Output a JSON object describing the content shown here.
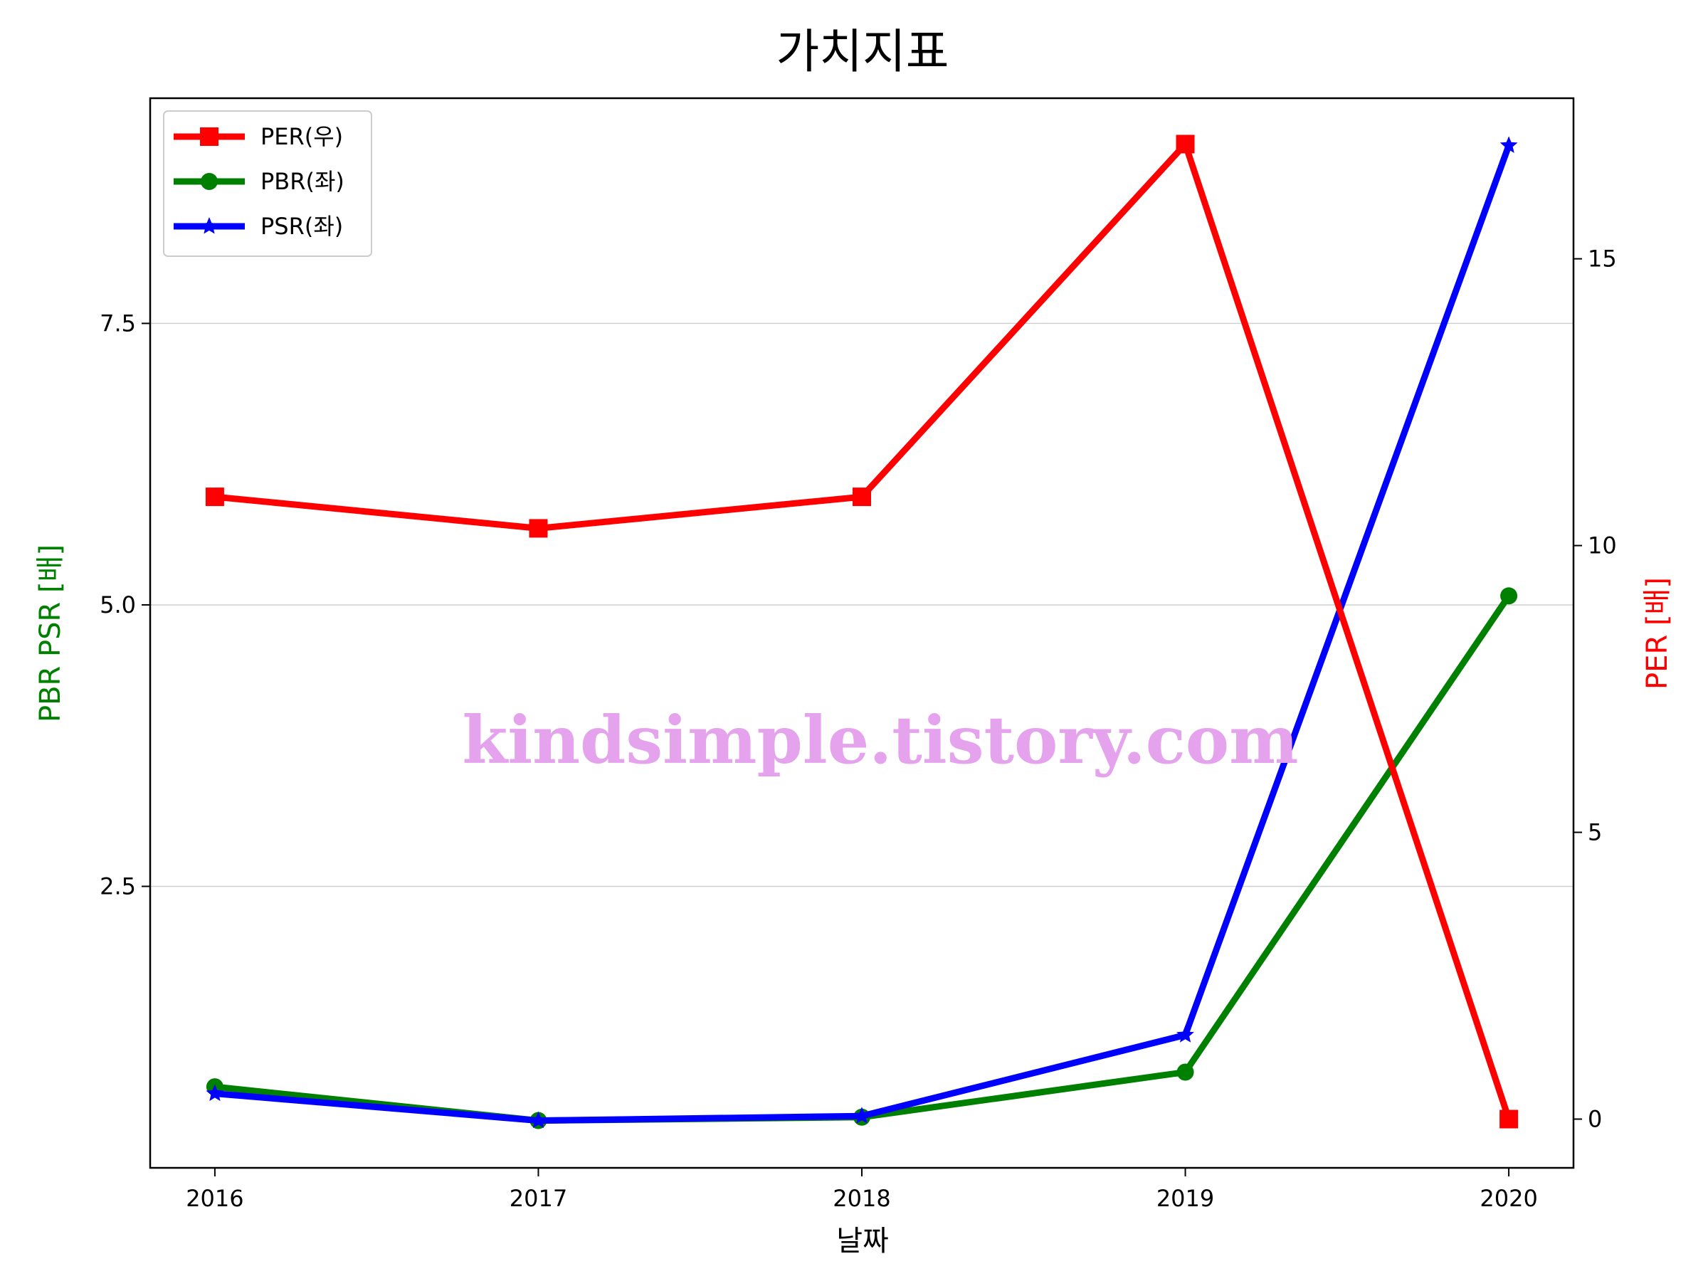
{
  "chart_data": {
    "type": "line",
    "title": "가치지표",
    "xlabel": "날짜",
    "ylabel_left": "PBR PSR [배]",
    "ylabel_right": "PER [배]",
    "x": [
      "2016",
      "2017",
      "2018",
      "2019",
      "2020"
    ],
    "xlim": [
      2015.8,
      2020.2
    ],
    "ylim_left": [
      0.0,
      9.5
    ],
    "ylim_right": [
      -0.85,
      17.8
    ],
    "yticks_left": [
      "2.5",
      "5.0",
      "7.5"
    ],
    "yticks_right": [
      "0",
      "5",
      "10",
      "15"
    ],
    "grid": "horizontal-left",
    "legend_position": "upper-left",
    "series": [
      {
        "name": "PER(우)",
        "axis": "right",
        "color": "#ff0000",
        "marker": "square",
        "values": [
          10.85,
          10.3,
          10.85,
          17.0,
          0.0
        ]
      },
      {
        "name": "PBR(좌)",
        "axis": "left",
        "color": "#008000",
        "marker": "circle",
        "values": [
          0.72,
          0.42,
          0.45,
          0.85,
          5.08
        ]
      },
      {
        "name": "PSR(좌)",
        "axis": "left",
        "color": "#0000ff",
        "marker": "star",
        "values": [
          0.66,
          0.42,
          0.46,
          1.18,
          9.08
        ]
      }
    ],
    "watermark": "kindsimple.tistory.com"
  }
}
